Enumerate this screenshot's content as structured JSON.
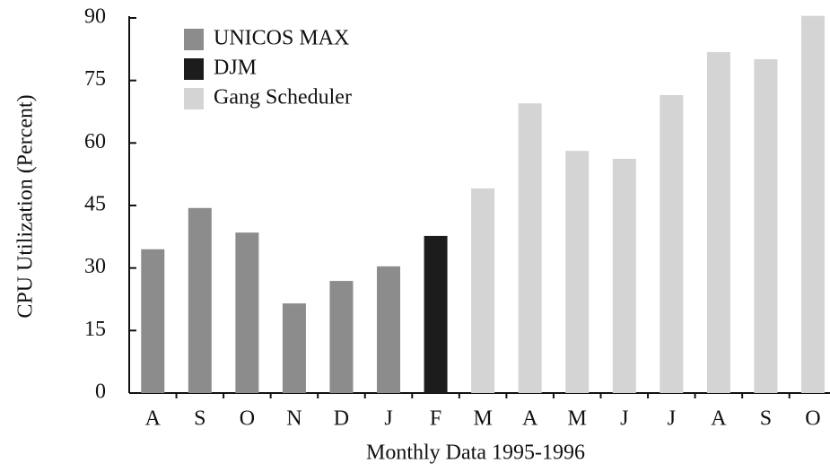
{
  "chart_data": {
    "type": "bar",
    "x_label": "Monthly Data 1995-1996",
    "y_label": "CPU Utilization (Percent)",
    "categories": [
      "A",
      "S",
      "O",
      "N",
      "D",
      "J",
      "F",
      "M",
      "A",
      "M",
      "J",
      "J",
      "A",
      "S",
      "O"
    ],
    "series": [
      {
        "name": "UNICOS MAX",
        "color": "#8c8c8c",
        "values": [
          34.5,
          44.4,
          38.5,
          21.5,
          26.9,
          30.4,
          null,
          null,
          null,
          null,
          null,
          null,
          null,
          null,
          null
        ]
      },
      {
        "name": "DJM",
        "color": "#1c1c1c",
        "values": [
          null,
          null,
          null,
          null,
          null,
          null,
          37.7,
          null,
          null,
          null,
          null,
          null,
          null,
          null,
          null
        ]
      },
      {
        "name": "Gang Scheduler",
        "color": "#d4d4d4",
        "values": [
          null,
          null,
          null,
          null,
          null,
          null,
          null,
          49.1,
          69.5,
          58.1,
          56.2,
          71.5,
          81.8,
          80.1,
          90.5
        ]
      }
    ],
    "ylim": [
      0,
      90
    ],
    "yticks": [
      0,
      15,
      30,
      45,
      60,
      75,
      90
    ]
  }
}
